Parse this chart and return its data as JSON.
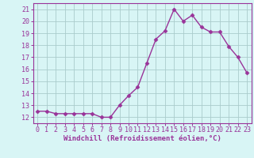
{
  "x": [
    0,
    1,
    2,
    3,
    4,
    5,
    6,
    7,
    8,
    9,
    10,
    11,
    12,
    13,
    14,
    15,
    16,
    17,
    18,
    19,
    20,
    21,
    22,
    23
  ],
  "y": [
    12.5,
    12.5,
    12.3,
    12.3,
    12.3,
    12.3,
    12.3,
    12.0,
    12.0,
    13.0,
    13.8,
    14.5,
    16.5,
    18.5,
    19.2,
    21.0,
    20.0,
    20.5,
    19.5,
    19.1,
    19.1,
    17.9,
    17.0,
    15.7
  ],
  "line_color": "#993399",
  "marker": "D",
  "marker_size": 2.5,
  "bg_color": "#d8f5f5",
  "grid_color": "#aacccc",
  "xlabel": "Windchill (Refroidissement éolien,°C)",
  "ylabel": "",
  "xlim": [
    -0.5,
    23.5
  ],
  "ylim": [
    11.5,
    21.5
  ],
  "yticks": [
    12,
    13,
    14,
    15,
    16,
    17,
    18,
    19,
    20,
    21
  ],
  "xticks": [
    0,
    1,
    2,
    3,
    4,
    5,
    6,
    7,
    8,
    9,
    10,
    11,
    12,
    13,
    14,
    15,
    16,
    17,
    18,
    19,
    20,
    21,
    22,
    23
  ],
  "tick_color": "#993399",
  "label_fontsize": 6.5,
  "tick_fontsize": 6,
  "spine_color": "#993399",
  "linewidth": 1.0
}
